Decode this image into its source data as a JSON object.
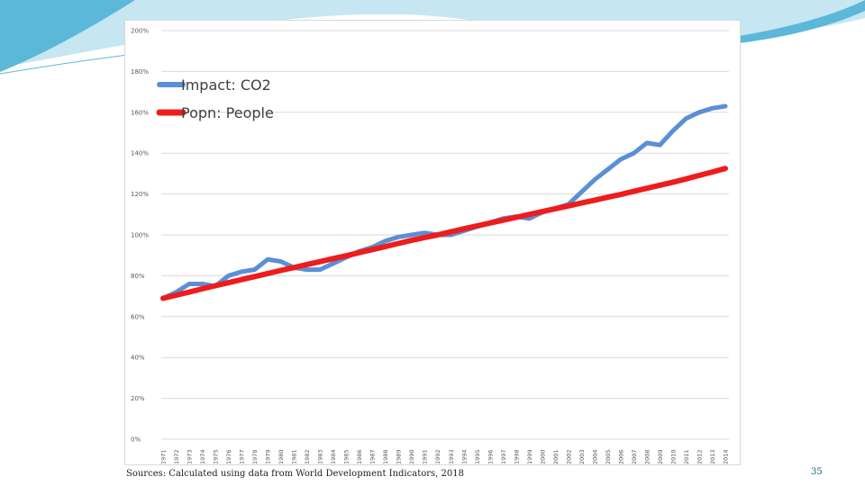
{
  "slide": {
    "source_note": "Sources: Calculated using data from World Development Indicators, 2018",
    "page_number": "35",
    "colors": {
      "accent_top": "#5bb8d8",
      "accent_light": "#c6e6f2"
    }
  },
  "chart_data": {
    "type": "line",
    "title": "",
    "xlabel": "",
    "ylabel": "",
    "ylim": [
      0,
      200
    ],
    "y_ticks": [
      0,
      20,
      40,
      60,
      80,
      100,
      120,
      140,
      160,
      180,
      200
    ],
    "y_tick_labels": [
      "0%",
      "20%",
      "40%",
      "60%",
      "80%",
      "100%",
      "120%",
      "140%",
      "160%",
      "180%",
      "200%"
    ],
    "grid": true,
    "legend_position": "top-left",
    "categories": [
      "1971",
      "1972",
      "1973",
      "1974",
      "1975",
      "1976",
      "1977",
      "1978",
      "1979",
      "1980",
      "1981",
      "1982",
      "1983",
      "1984",
      "1985",
      "1986",
      "1987",
      "1988",
      "1989",
      "1990",
      "1991",
      "1992",
      "1993",
      "1994",
      "1995",
      "1996",
      "1997",
      "1998",
      "1999",
      "2000",
      "2001",
      "2002",
      "2003",
      "2004",
      "2005",
      "2006",
      "2007",
      "2008",
      "2009",
      "2010",
      "2011",
      "2012",
      "2013",
      "2014"
    ],
    "series": [
      {
        "name": "Impact: CO2",
        "color": "#5b8fd6",
        "values": [
          69,
          72,
          76,
          76,
          75,
          80,
          82,
          83,
          88,
          87,
          84,
          83,
          83,
          86,
          89,
          92,
          94,
          97,
          99,
          100,
          101,
          100,
          100,
          102,
          104,
          106,
          108,
          109,
          108,
          111,
          113,
          115,
          121,
          127,
          132,
          137,
          140,
          145,
          144,
          151,
          157,
          160,
          162,
          163
        ]
      },
      {
        "name": "Popn: People",
        "color": "#ee1c1c",
        "values": [
          69,
          70.5,
          72,
          73.6,
          75.1,
          76.6,
          78.1,
          79.6,
          81.1,
          82.6,
          84,
          85.5,
          86.9,
          88.4,
          89.8,
          91.3,
          92.8,
          94.3,
          95.8,
          97.3,
          98.7,
          100,
          101.5,
          103,
          104.4,
          105.8,
          107.2,
          108.6,
          110,
          111.4,
          112.8,
          114.2,
          115.6,
          117,
          118.4,
          119.8,
          121.3,
          122.8,
          124.3,
          125.8,
          127.4,
          129.1,
          130.8,
          132.5
        ]
      }
    ]
  }
}
